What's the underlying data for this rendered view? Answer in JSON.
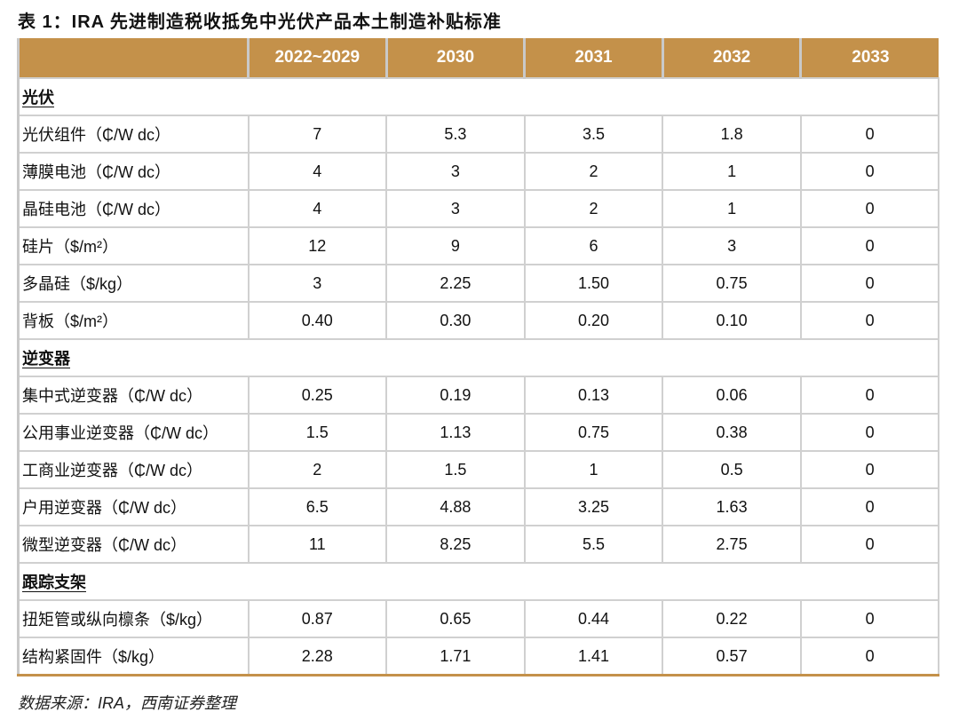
{
  "title": "表 1：IRA 先进制造税收抵免中光伏产品本土制造补贴标准",
  "colors": {
    "header_bg": "#C4914A",
    "header_text": "#FFFFFF"
  },
  "table": {
    "headers": [
      "",
      "2022~2029",
      "2030",
      "2031",
      "2032",
      "2033"
    ],
    "sections": [
      {
        "name": "光伏",
        "rows": [
          {
            "label": "光伏组件（₵/W dc）",
            "values": [
              "7",
              "5.3",
              "3.5",
              "1.8",
              "0"
            ]
          },
          {
            "label": "薄膜电池（₵/W dc）",
            "values": [
              "4",
              "3",
              "2",
              "1",
              "0"
            ]
          },
          {
            "label": "晶硅电池（₵/W dc）",
            "values": [
              "4",
              "3",
              "2",
              "1",
              "0"
            ]
          },
          {
            "label": "硅片（$/m²）",
            "values": [
              "12",
              "9",
              "6",
              "3",
              "0"
            ]
          },
          {
            "label": "多晶硅（$/kg）",
            "values": [
              "3",
              "2.25",
              "1.50",
              "0.75",
              "0"
            ]
          },
          {
            "label": "背板（$/m²）",
            "values": [
              "0.40",
              "0.30",
              "0.20",
              "0.10",
              "0"
            ]
          }
        ]
      },
      {
        "name": "逆变器",
        "rows": [
          {
            "label": "集中式逆变器（₵/W dc）",
            "values": [
              "0.25",
              "0.19",
              "0.13",
              "0.06",
              "0"
            ]
          },
          {
            "label": "公用事业逆变器（₵/W dc）",
            "values": [
              "1.5",
              "1.13",
              "0.75",
              "0.38",
              "0"
            ]
          },
          {
            "label": "工商业逆变器（₵/W dc）",
            "values": [
              "2",
              "1.5",
              "1",
              "0.5",
              "0"
            ]
          },
          {
            "label": "户用逆变器（₵/W dc）",
            "values": [
              "6.5",
              "4.88",
              "3.25",
              "1.63",
              "0"
            ]
          },
          {
            "label": "微型逆变器（₵/W dc）",
            "values": [
              "11",
              "8.25",
              "5.5",
              "2.75",
              "0"
            ]
          }
        ]
      },
      {
        "name": "跟踪支架",
        "rows": [
          {
            "label": "扭矩管或纵向檩条（$/kg）",
            "values": [
              "0.87",
              "0.65",
              "0.44",
              "0.22",
              "0"
            ]
          },
          {
            "label": "结构紧固件（$/kg）",
            "values": [
              "2.28",
              "1.71",
              "1.41",
              "0.57",
              "0"
            ]
          }
        ]
      }
    ]
  },
  "source": "数据来源：IRA，西南证券整理"
}
